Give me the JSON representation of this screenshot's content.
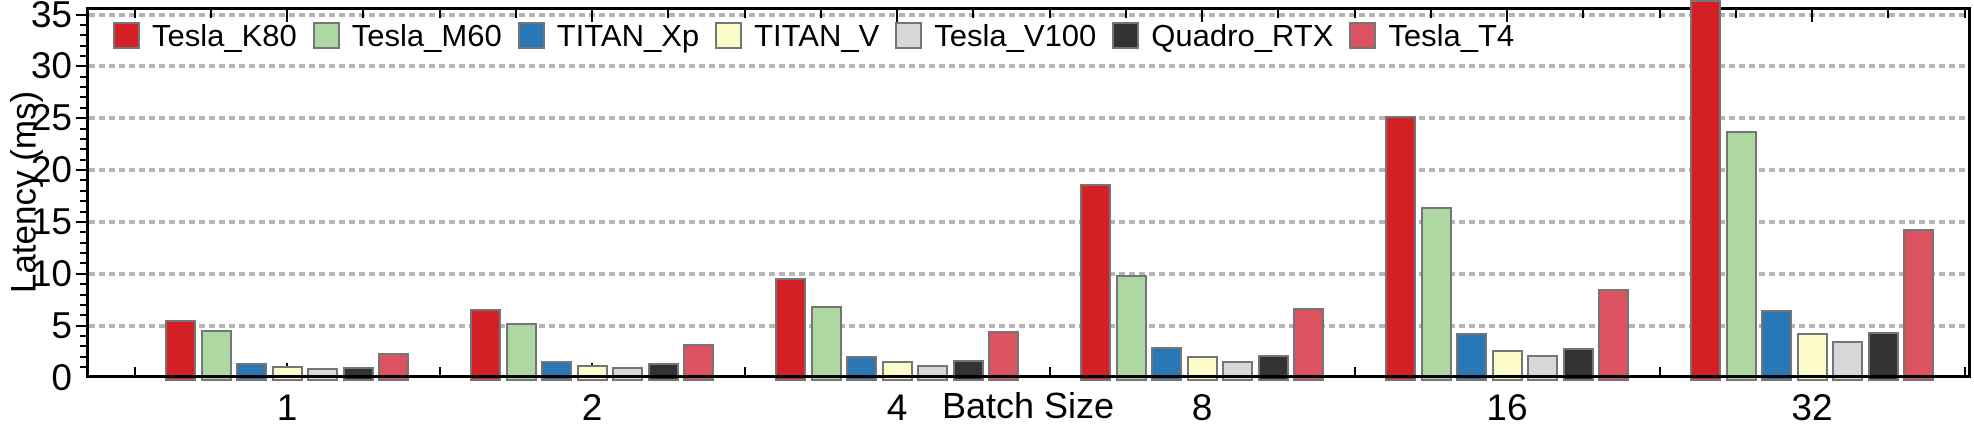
{
  "chart_data": {
    "type": "bar",
    "title": "",
    "xlabel": "Batch Size",
    "ylabel": "Latency (ms)",
    "categories": [
      "1",
      "2",
      "4",
      "8",
      "16",
      "32"
    ],
    "series": [
      {
        "name": "Tesla_K80",
        "color": "#d41f24",
        "values": [
          5.5,
          6.6,
          9.6,
          18.7,
          25.2,
          36.5
        ]
      },
      {
        "name": "Tesla_M60",
        "color": "#aed8a2",
        "values": [
          4.6,
          5.3,
          6.9,
          9.9,
          16.4,
          23.8
        ]
      },
      {
        "name": "TITAN_Xp",
        "color": "#2978b5",
        "values": [
          1.4,
          1.55,
          2.1,
          2.9,
          4.3,
          6.5
        ]
      },
      {
        "name": "TITAN_V",
        "color": "#fbfbc9",
        "values": [
          1.1,
          1.2,
          1.6,
          2.05,
          2.65,
          4.3
        ]
      },
      {
        "name": "Tesla_V100",
        "color": "#d8d8d8",
        "values": [
          0.9,
          1.0,
          1.25,
          1.6,
          2.2,
          3.5
        ]
      },
      {
        "name": "Quadro_RTX",
        "color": "#333333",
        "values": [
          1.0,
          1.35,
          1.65,
          2.2,
          2.8,
          4.4
        ]
      },
      {
        "name": "Tesla_T4",
        "color": "#da535f",
        "values": [
          2.4,
          3.2,
          4.5,
          6.7,
          8.5,
          14.3
        ]
      }
    ],
    "ylim": [
      0,
      35.8
    ],
    "yticks": [
      0,
      5,
      10,
      15,
      20,
      25,
      30,
      35
    ],
    "grid": {
      "axis": "y",
      "style": "dotted",
      "color": "#b5b5b5"
    },
    "legend_position": "top-left horizontal row inside plot",
    "bar_edge_color": "#757575",
    "clipped_bar_note": "Tesla_K80 at batch size 32 exceeds the axis top (> 36 ms) and is drawn clipped"
  }
}
